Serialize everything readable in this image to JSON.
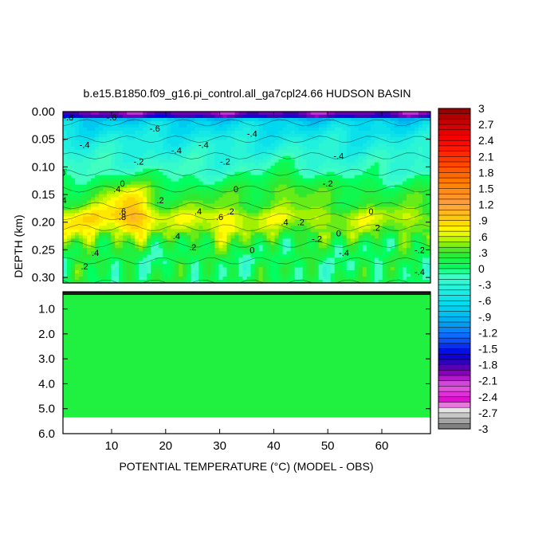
{
  "chart_data": {
    "type": "heatmap",
    "title": "b.e15.B1850.f09_g16.pi_control.all_ga7cpl24.66 HUDSON BASIN",
    "xlabel": "POTENTIAL TEMPERATURE (°C) (MODEL - OBS)",
    "ylabel": "DEPTH (km)",
    "xlim": [
      1,
      69
    ],
    "x_ticks": [
      10,
      20,
      30,
      40,
      50,
      60
    ],
    "upper_panel": {
      "ylim": [
        0.0,
        0.31
      ],
      "y_ticks": [
        "0.00",
        "0.05",
        "0.10",
        "0.15",
        "0.20",
        "0.25",
        "0.30"
      ],
      "depth_rows": [
        0.0,
        0.02,
        0.05,
        0.08,
        0.11,
        0.14,
        0.17,
        0.19,
        0.21,
        0.24,
        0.27,
        0.31
      ],
      "row_profile": [
        -1.2,
        -0.7,
        -0.45,
        -0.3,
        -0.15,
        0.15,
        0.3,
        0.55,
        0.45,
        0.15,
        0.05,
        0.1
      ],
      "warm_anomalies": [
        {
          "x": 13,
          "depth": 0.19,
          "amp": 0.45
        },
        {
          "x": 13,
          "depth": 0.15,
          "amp": 0.35
        },
        {
          "x": 30,
          "depth": 0.21,
          "amp": 0.25
        },
        {
          "x": 43,
          "depth": 0.13,
          "amp": 0.3
        },
        {
          "x": 3,
          "depth": 0.22,
          "amp": 0.35
        }
      ],
      "contour_labels": [
        {
          "x": 2,
          "depth": 0.01,
          "text": "-.8"
        },
        {
          "x": 10,
          "depth": 0.01,
          "text": "-.6"
        },
        {
          "x": 18,
          "depth": 0.03,
          "text": "-.6"
        },
        {
          "x": 27,
          "depth": 0.06,
          "text": "-.4"
        },
        {
          "x": 36,
          "depth": 0.04,
          "text": "-.4"
        },
        {
          "x": 5,
          "depth": 0.06,
          "text": "-.4"
        },
        {
          "x": 15,
          "depth": 0.09,
          "text": "-.2"
        },
        {
          "x": 22,
          "depth": 0.07,
          "text": "-.4"
        },
        {
          "x": 31,
          "depth": 0.09,
          "text": "-.2"
        },
        {
          "x": 52,
          "depth": 0.08,
          "text": "-.4"
        },
        {
          "x": 12,
          "depth": 0.13,
          "text": "0"
        },
        {
          "x": 33,
          "depth": 0.14,
          "text": "0"
        },
        {
          "x": 50,
          "depth": 0.13,
          "text": "-.2"
        },
        {
          "x": 1,
          "depth": 0.11,
          "text": "0"
        },
        {
          "x": 1,
          "depth": 0.16,
          "text": ".4"
        },
        {
          "x": 11,
          "depth": 0.14,
          "text": ".4"
        },
        {
          "x": 19,
          "depth": 0.16,
          "text": ".2"
        },
        {
          "x": 12,
          "depth": 0.18,
          "text": ".6"
        },
        {
          "x": 26,
          "depth": 0.18,
          "text": ".4"
        },
        {
          "x": 30,
          "depth": 0.19,
          "text": ".6"
        },
        {
          "x": 32,
          "depth": 0.18,
          "text": ".2"
        },
        {
          "x": 58,
          "depth": 0.18,
          "text": "0"
        },
        {
          "x": 12,
          "depth": 0.19,
          "text": ".8"
        },
        {
          "x": 42,
          "depth": 0.2,
          "text": ".4"
        },
        {
          "x": 45,
          "depth": 0.2,
          "text": ".2"
        },
        {
          "x": 52,
          "depth": 0.22,
          "text": "0"
        },
        {
          "x": 59,
          "depth": 0.21,
          "text": ".2"
        },
        {
          "x": 22,
          "depth": 0.225,
          "text": ".4"
        },
        {
          "x": 25,
          "depth": 0.245,
          "text": ".2"
        },
        {
          "x": 48,
          "depth": 0.23,
          "text": "-.2"
        },
        {
          "x": 53,
          "depth": 0.255,
          "text": "-.4"
        },
        {
          "x": 67,
          "depth": 0.25,
          "text": "-.2"
        },
        {
          "x": 7,
          "depth": 0.255,
          "text": ".4"
        },
        {
          "x": 5,
          "depth": 0.28,
          "text": ".2"
        },
        {
          "x": 67,
          "depth": 0.29,
          "text": "-.4"
        },
        {
          "x": 36,
          "depth": 0.25,
          "text": "0"
        }
      ]
    },
    "lower_panel": {
      "ylim": [
        0.31,
        6.0
      ],
      "y_ticks": [
        "1.0",
        "2.0",
        "3.0",
        "4.0",
        "5.0",
        "6.0"
      ],
      "data_bottom": 5.35,
      "fill_value": 0.2,
      "surface_value": 0.05
    },
    "colorbar": {
      "levels": [
        "3",
        "2.7",
        "2.4",
        "2.1",
        "1.8",
        "1.5",
        "1.2",
        ".9",
        ".6",
        ".3",
        "0",
        "-.3",
        "-.6",
        "-.9",
        "-1.2",
        "-1.5",
        "-1.8",
        "-2.1",
        "-2.4",
        "-2.7",
        "-3"
      ],
      "range": [
        -3,
        3
      ],
      "interval": 0.1
    },
    "grid": false,
    "legend": "right"
  }
}
